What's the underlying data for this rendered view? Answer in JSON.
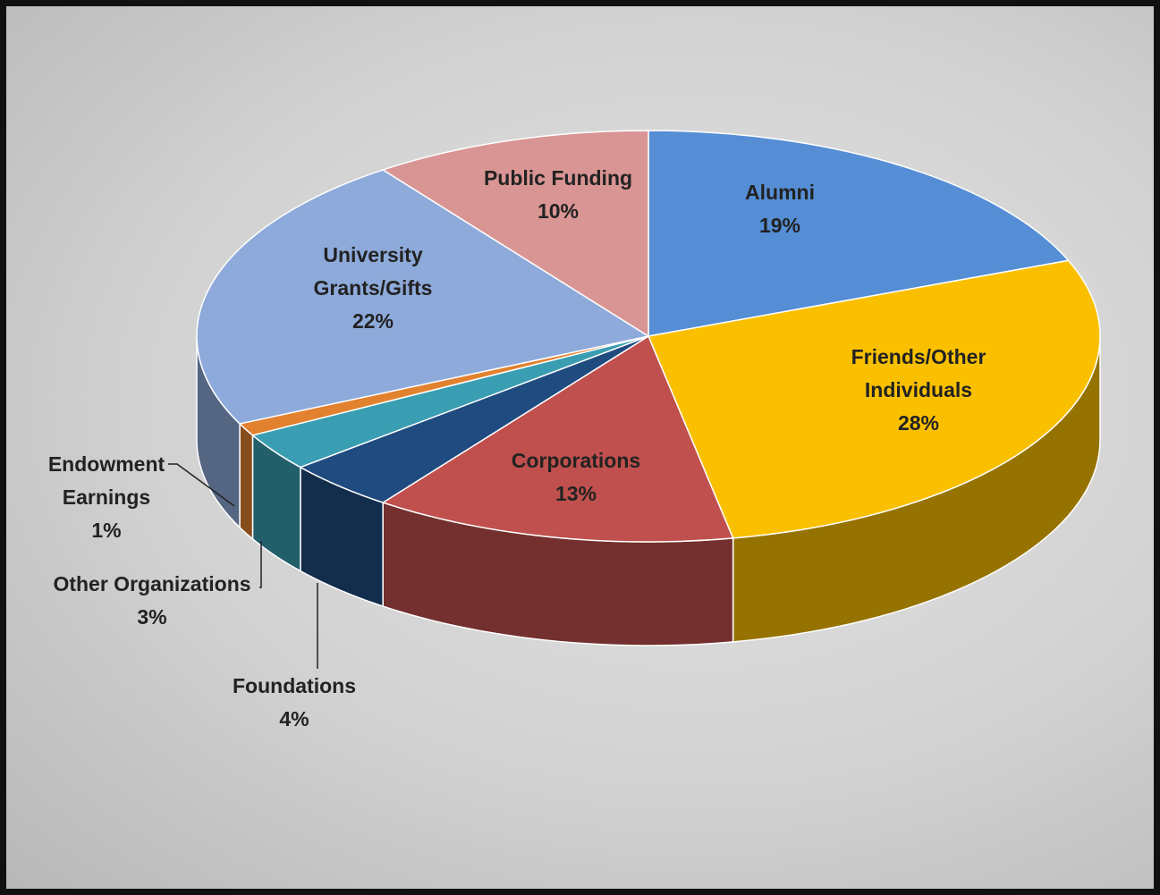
{
  "chart_data": {
    "type": "pie",
    "categories": [
      "Alumni",
      "Friends/Other Individuals",
      "Corporations",
      "Foundations",
      "Other Organizations",
      "Endowment Earnings",
      "University Grants/Gifts",
      "Public Funding"
    ],
    "values": [
      19,
      28,
      13,
      4,
      3,
      1,
      22,
      10
    ],
    "value_labels": [
      "19%",
      "28%",
      "13%",
      "4%",
      "3%",
      "1%",
      "22%",
      "10%"
    ],
    "colors": [
      "#558ed5",
      "#fac000",
      "#c0504d",
      "#1f4b80",
      "#3a9eb2",
      "#e2812e",
      "#8eaadb",
      "#d99594"
    ]
  }
}
